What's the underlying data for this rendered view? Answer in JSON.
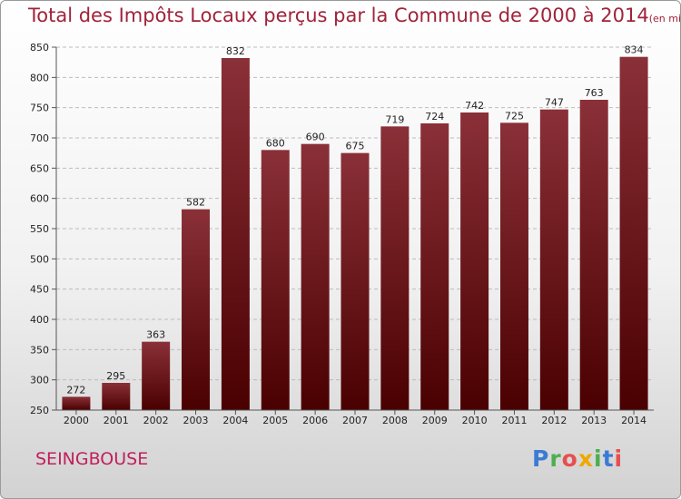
{
  "header": {
    "title": "Total des Impôts Locaux perçus par la Commune de 2000 à 2014",
    "unit": "(en milliers d'€)"
  },
  "footer": {
    "commune": "SEINGBOUSE",
    "logo_letters": [
      {
        "ch": "P",
        "color": "#3a7bd5"
      },
      {
        "ch": "r",
        "color": "#4caf50"
      },
      {
        "ch": "o",
        "color": "#e84e4e"
      },
      {
        "ch": "x",
        "color": "#f0a800"
      },
      {
        "ch": "i",
        "color": "#4caf50"
      },
      {
        "ch": "t",
        "color": "#3a7bd5"
      },
      {
        "ch": "i",
        "color": "#e84e4e"
      }
    ]
  },
  "chart_data": {
    "type": "bar",
    "title": "Total des Impôts Locaux perçus par la Commune de 2000 à 2014",
    "categories": [
      "2000",
      "2001",
      "2002",
      "2003",
      "2004",
      "2005",
      "2006",
      "2007",
      "2008",
      "2009",
      "2010",
      "2011",
      "2012",
      "2013",
      "2014"
    ],
    "values": [
      272,
      295,
      363,
      582,
      832,
      680,
      690,
      675,
      719,
      724,
      742,
      725,
      747,
      763,
      834
    ],
    "ylim": [
      250,
      850
    ],
    "yticks": [
      250,
      300,
      350,
      400,
      450,
      500,
      550,
      600,
      650,
      700,
      750,
      800,
      850
    ],
    "grid": true,
    "bar_color": "#7a1c24"
  }
}
